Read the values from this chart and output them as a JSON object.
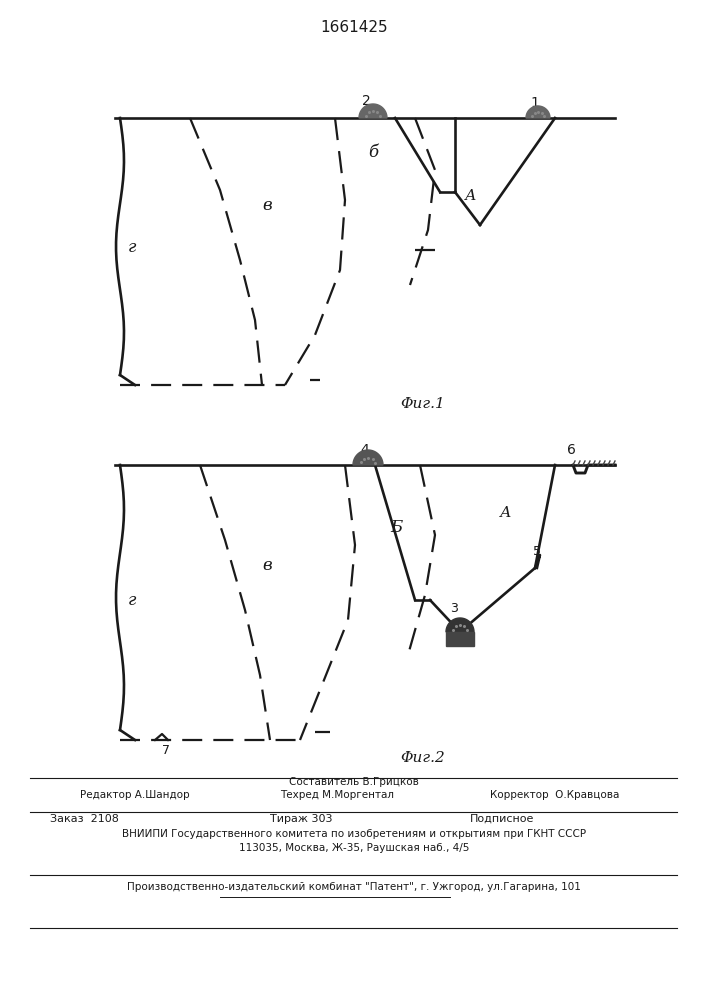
{
  "title": "1661425",
  "fig1_label": "Φиг.1",
  "fig2_label": "Φиг.2",
  "line_color": "#1a1a1a",
  "footer_text": {
    "sostavitel": "Составитель В.Грицков",
    "redaktor": "Редактор А.Шандор",
    "tehred": "Техред М.Моргентал",
    "korrektor": "Корректор  О.Кравцова",
    "zakaz": "Заказ  2108",
    "tirazh": "Тираж 303",
    "podpisnoe": "Подписное",
    "vniipI": "ВНИИПИ Государственного комитета по изобретениям и открытиям при ГКНТ СССР",
    "address": "113035, Москва, Ж-35, Раушская наб., 4/5",
    "patent": "Производственно-издательский комбинат \"Патент\", г. Ужгород, ул.Гагарина, 101"
  }
}
